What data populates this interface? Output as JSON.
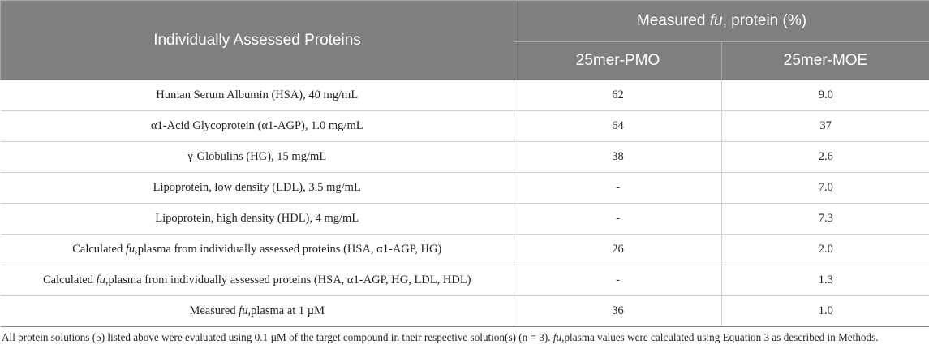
{
  "header": {
    "col1": "Individually Assessed Proteins",
    "col2_pre": "Measured ",
    "col2_italic": "fu",
    "col2_post": ", protein (%)",
    "sub_col2": "25mer-PMO",
    "sub_col3": "25mer-MOE"
  },
  "rows": [
    {
      "pre": "Human Serum Albumin (HSA), 40 mg/mL",
      "ital": "",
      "post": "",
      "pmo": "62",
      "moe": "9.0"
    },
    {
      "pre": "α1-Acid Glycoprotein (α1-AGP), 1.0 mg/mL",
      "ital": "",
      "post": "",
      "pmo": "64",
      "moe": "37"
    },
    {
      "pre": "γ-Globulins (HG), 15 mg/mL",
      "ital": "",
      "post": "",
      "pmo": "38",
      "moe": "2.6"
    },
    {
      "pre": "Lipoprotein, low density (LDL), 3.5 mg/mL",
      "ital": "",
      "post": "",
      "pmo": "-",
      "moe": "7.0"
    },
    {
      "pre": "Lipoprotein, high density (HDL), 4 mg/mL",
      "ital": "",
      "post": "",
      "pmo": "-",
      "moe": "7.3"
    },
    {
      "pre": "Calculated ",
      "ital": "fu",
      "post": ",plasma from individually assessed proteins (HSA, α1-AGP, HG)",
      "pmo": "26",
      "moe": "2.0"
    },
    {
      "pre": "Calculated ",
      "ital": "fu",
      "post": ",plasma from individually assessed proteins (HSA, α1-AGP, HG, LDL, HDL)",
      "pmo": "-",
      "moe": "1.3"
    },
    {
      "pre": "Measured ",
      "ital": "fu",
      "post": ",plasma at 1 µM",
      "pmo": "36",
      "moe": "1.0"
    }
  ],
  "footnote": {
    "part1": "All protein solutions (5) listed above were evaluated using 0.1 µM of the target compound in their respective solution(s) (n = 3). ",
    "italic": "fu",
    "part2": ",plasma values were calculated using Equation 3 as described in Methods."
  }
}
